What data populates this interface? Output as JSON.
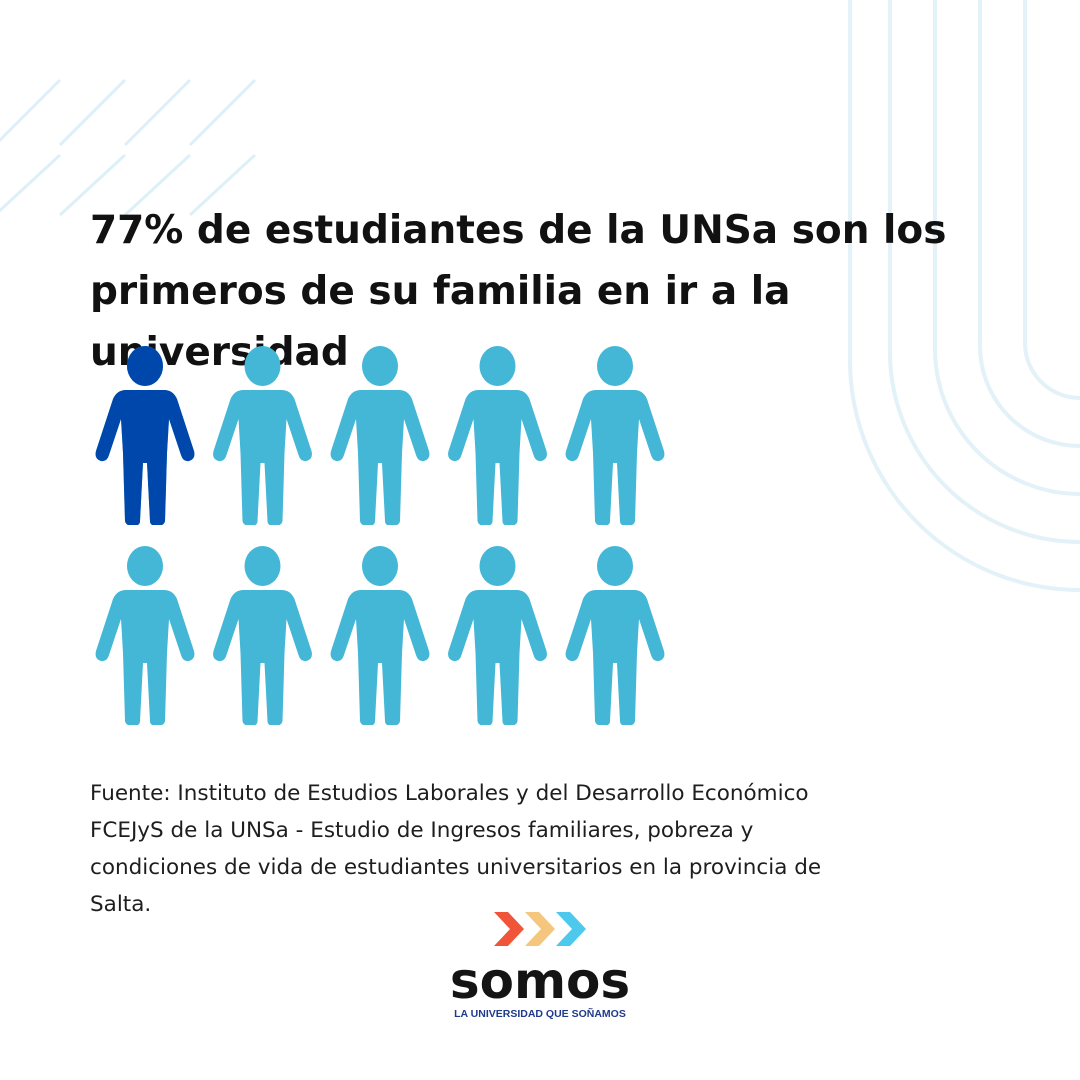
{
  "headline": {
    "line1": "77% de estudiantes de la UNSa son los",
    "line2": "primeros de su familia en ir a la universidad"
  },
  "chart_data": {
    "type": "pictogram",
    "value_percent": 77,
    "total_icons": 10,
    "rows": 2,
    "columns": 5,
    "filled_color": "#0047AB",
    "empty_color": "#44B6D6"
  },
  "source": {
    "line1": "Fuente: Instituto de Estudios Laborales y del Desarrollo Económico",
    "line2": "FCEJyS de la UNSa - Estudio de Ingresos familiares, pobreza y",
    "line3": "condiciones de vida de estudiantes universitarios en la provincia de",
    "line4": "Salta."
  },
  "logo": {
    "word": "somos",
    "tagline": "LA UNIVERSIDAD QUE SOÑAMOS",
    "chevron_colors": [
      "#F0553A",
      "#F5C77E",
      "#4CC9EC"
    ]
  },
  "decor": {
    "stripe_color": "#DDF0FA",
    "arc_color": "#E3F1F8"
  }
}
